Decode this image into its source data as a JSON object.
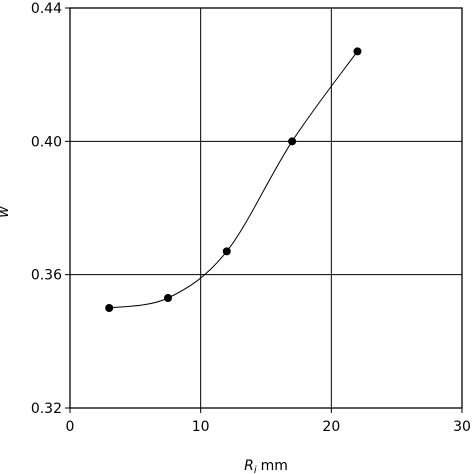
{
  "chart_data": {
    "type": "line",
    "title": "",
    "xlabel": "R",
    "xlabel_subscript": "i",
    "xlabel_unit": "mm",
    "ylabel": "w",
    "xlim": [
      0,
      30
    ],
    "ylim": [
      0.32,
      0.44
    ],
    "xticks": [
      "0",
      "10",
      "20",
      "30"
    ],
    "yticks": [
      "0.32",
      "0.36",
      "0.40",
      "0.44"
    ],
    "grid": true,
    "series": [
      {
        "x": [
          3,
          7.5,
          12,
          17,
          22
        ],
        "y": [
          0.35,
          0.353,
          0.367,
          0.4,
          0.427
        ],
        "marker": "circle",
        "line_style": "smooth",
        "color": "#000000"
      }
    ]
  }
}
